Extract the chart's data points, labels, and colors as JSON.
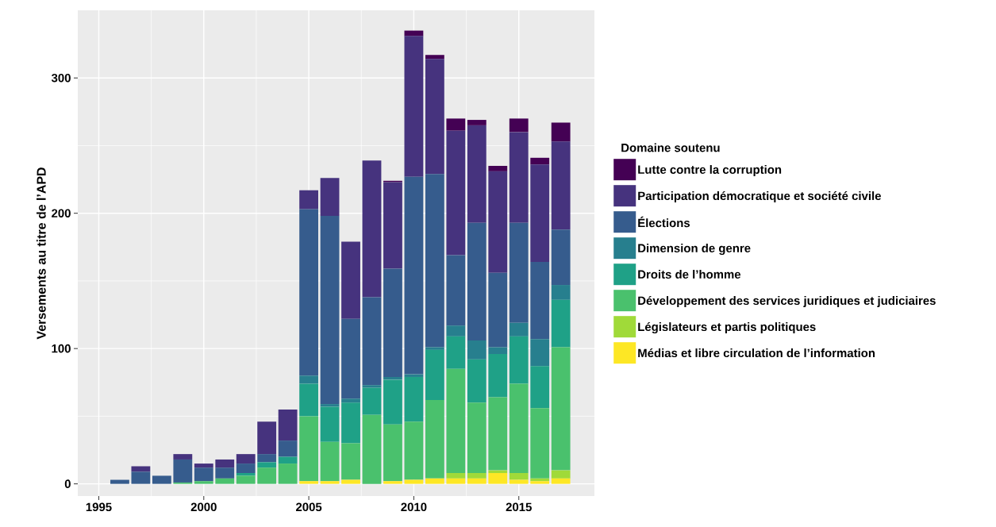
{
  "chart_data": {
    "type": "bar",
    "stacked": true,
    "ylabel": "Versements au titre de l’APD",
    "legend_title": "Domaine soutenu",
    "x": [
      1996,
      1997,
      1998,
      1999,
      2000,
      2001,
      2002,
      2003,
      2004,
      2005,
      2006,
      2007,
      2008,
      2009,
      2010,
      2011,
      2012,
      2013,
      2014,
      2015,
      2016,
      2017
    ],
    "xlim": [
      1994,
      2018.6
    ],
    "xticks": [
      1995,
      2000,
      2005,
      2010,
      2015
    ],
    "ylim": [
      -9,
      350
    ],
    "yticks": [
      0,
      100,
      200,
      300
    ],
    "grid": true,
    "legend": "right",
    "series": [
      {
        "name": "Médias et libre circulation de l’information",
        "color": "#fde725",
        "values": [
          0,
          0,
          0,
          0,
          0,
          0,
          0,
          0,
          0,
          2,
          2,
          3,
          0,
          2,
          3,
          4,
          4,
          4,
          8,
          3,
          2,
          4
        ]
      },
      {
        "name": "Législateurs et partis politiques",
        "color": "#a0da39",
        "values": [
          0,
          0,
          0,
          0,
          0,
          0,
          0,
          0,
          0,
          0,
          0,
          0,
          0,
          0,
          0,
          0,
          4,
          4,
          2,
          5,
          2,
          6
        ]
      },
      {
        "name": "Développement des services juridiques et judiciaires",
        "color": "#4ac16d",
        "values": [
          0,
          0,
          0,
          1,
          2,
          4,
          6,
          12,
          15,
          48,
          29,
          27,
          51,
          42,
          43,
          58,
          77,
          52,
          54,
          66,
          52,
          91
        ]
      },
      {
        "name": "Droits de l’homme",
        "color": "#1fa187",
        "values": [
          0,
          0,
          0,
          0,
          0,
          0,
          2,
          4,
          5,
          24,
          26,
          30,
          20,
          33,
          33,
          37,
          24,
          32,
          32,
          35,
          31,
          35
        ]
      },
      {
        "name": "Dimension de genre",
        "color": "#277f8e",
        "values": [
          0,
          0,
          0,
          0,
          0,
          0,
          0,
          0,
          0,
          6,
          2,
          3,
          2,
          2,
          2,
          2,
          8,
          14,
          5,
          10,
          20,
          11
        ]
      },
      {
        "name": "Élections",
        "color": "#365c8d",
        "values": [
          3,
          9,
          6,
          17,
          10,
          8,
          7,
          6,
          12,
          123,
          139,
          59,
          65,
          80,
          146,
          128,
          52,
          87,
          55,
          74,
          57,
          41
        ]
      },
      {
        "name": "Participation démocratique et société civile",
        "color": "#46337e",
        "values": [
          0,
          4,
          0,
          4,
          3,
          6,
          7,
          24,
          23,
          14,
          28,
          57,
          101,
          64,
          104,
          85,
          92,
          72,
          75,
          67,
          72,
          65
        ]
      },
      {
        "name": "Lutte contre la corruption",
        "color": "#440154",
        "values": [
          0,
          0,
          0,
          0,
          0,
          0,
          0,
          0,
          0,
          0,
          0,
          0,
          0,
          1,
          4,
          3,
          9,
          4,
          4,
          10,
          5,
          14
        ]
      }
    ]
  }
}
